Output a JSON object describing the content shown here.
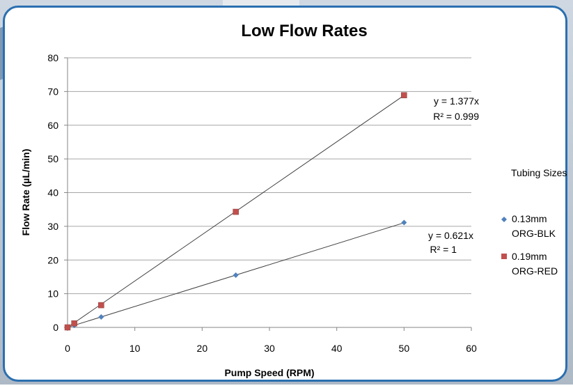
{
  "colors": {
    "frame": "#2a6fb0",
    "grid": "#a6a6a6",
    "axis": "#868686",
    "trend": "#404040",
    "series_blue": "#4f81bd",
    "series_red": "#c0504d"
  },
  "chart_data": {
    "type": "scatter",
    "title": "Low Flow Rates",
    "xlabel": "Pump Speed (RPM)",
    "ylabel": "Flow Rate (µL/min)",
    "xlim": [
      0,
      60
    ],
    "ylim": [
      0,
      80
    ],
    "x_ticks": [
      0,
      10,
      20,
      30,
      40,
      50,
      60
    ],
    "y_ticks": [
      0,
      10,
      20,
      30,
      40,
      50,
      60,
      70,
      80
    ],
    "grid": "horizontal",
    "legend_title": "Tubing Sizes",
    "legend_position": "right",
    "series": [
      {
        "name_line1": "0.13mm",
        "name_line2": "ORG-BLK",
        "marker": "diamond",
        "color": "#4f81bd",
        "x": [
          0,
          1,
          5,
          25,
          50
        ],
        "y": [
          0,
          0.6,
          3.1,
          15.5,
          31.1
        ],
        "trendline": {
          "slope": 0.621,
          "equation": "y = 0.621x",
          "r2": "R² = 1"
        }
      },
      {
        "name_line1": "0.19mm",
        "name_line2": "ORG-RED",
        "marker": "square",
        "color": "#c0504d",
        "x": [
          0,
          1,
          5,
          25,
          50
        ],
        "y": [
          0,
          1.2,
          6.6,
          34.3,
          68.9
        ],
        "trendline": {
          "slope": 1.377,
          "equation": "y = 1.377x",
          "r2": "R² = 0.999"
        }
      }
    ]
  }
}
